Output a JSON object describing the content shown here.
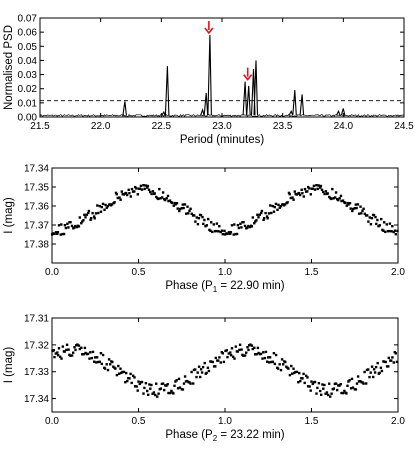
{
  "chart_data": [
    {
      "type": "line",
      "xlabel": "Period (minutes)",
      "ylabel": "Normalised PSD",
      "xlim": [
        21.5,
        24.5
      ],
      "ylim": [
        0,
        0.07
      ],
      "xticks": [
        "21.5",
        "22.0",
        "22.5",
        "23.0",
        "23.5",
        "24.0",
        "24.5"
      ],
      "yticks": [
        "0.00",
        "0.01",
        "0.02",
        "0.03",
        "0.04",
        "0.05",
        "0.06",
        "0.07"
      ],
      "threshold": 0.0115,
      "arrow_color": "#e8101b",
      "arrows_at_period": [
        22.9,
        23.22
      ],
      "peaks": [
        {
          "x": 22.2,
          "y": 0.011
        },
        {
          "x": 22.52,
          "y": 0.0035
        },
        {
          "x": 22.55,
          "y": 0.036
        },
        {
          "x": 22.84,
          "y": 0.005
        },
        {
          "x": 22.87,
          "y": 0.017
        },
        {
          "x": 22.9,
          "y": 0.058
        },
        {
          "x": 23.19,
          "y": 0.025
        },
        {
          "x": 23.22,
          "y": 0.022
        },
        {
          "x": 23.28,
          "y": 0.04
        },
        {
          "x": 23.26,
          "y": 0.034
        },
        {
          "x": 23.57,
          "y": 0.004
        },
        {
          "x": 23.6,
          "y": 0.019
        },
        {
          "x": 23.66,
          "y": 0.016
        },
        {
          "x": 23.96,
          "y": 0.004
        },
        {
          "x": 24.0,
          "y": 0.006
        }
      ]
    },
    {
      "type": "scatter",
      "xlabel": "Phase (P",
      "xlabel_sub": "1",
      "xlabel_tail": " = 22.90 min)",
      "ylabel": "I (mag)",
      "xlim": [
        0,
        2
      ],
      "ylim": [
        17.34,
        17.39
      ],
      "y_inverted": true,
      "xticks": [
        "0.0",
        "0.5",
        "1.0",
        "1.5",
        "2.0"
      ],
      "yticks": [
        "17.34",
        "17.35",
        "17.36",
        "17.37",
        "17.38"
      ],
      "model": {
        "mean": 17.362,
        "amplitude": 0.0105,
        "phase_of_maximum": 0.52,
        "scatter": 0.003
      }
    },
    {
      "type": "scatter",
      "xlabel": "Phase (P",
      "xlabel_sub": "2",
      "xlabel_tail": " = 23.22 min)",
      "ylabel": "I (mag)",
      "xlim": [
        0,
        2
      ],
      "ylim": [
        17.31,
        17.345
      ],
      "y_inverted": true,
      "xticks": [
        "0.0",
        "0.5",
        "1.0",
        "1.5",
        "2.0"
      ],
      "yticks": [
        "17.31",
        "17.32",
        "17.33",
        "17.34"
      ],
      "model": {
        "mean": 17.3295,
        "amplitude": 0.0075,
        "phase_of_maximum": 0.12,
        "scatter": 0.0025
      }
    }
  ]
}
